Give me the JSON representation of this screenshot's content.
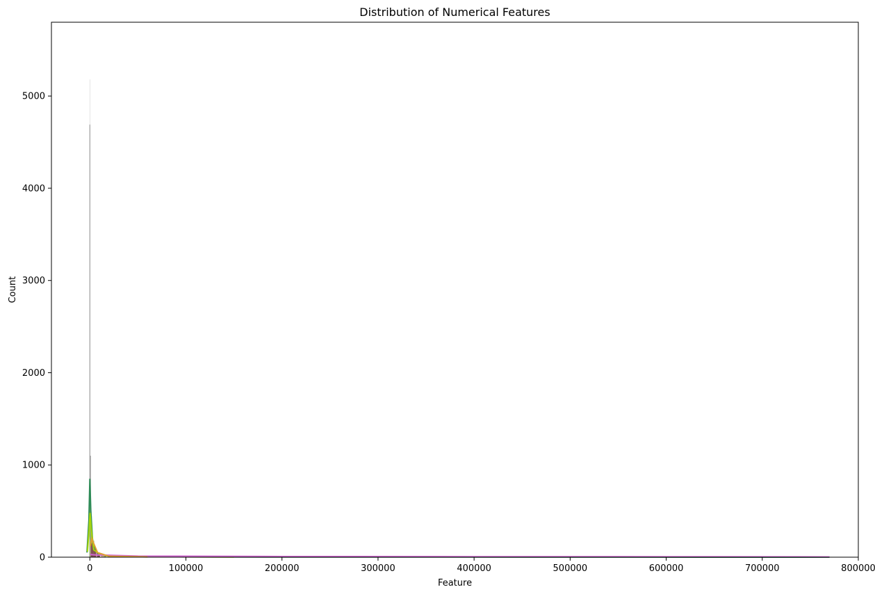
{
  "chart_data": {
    "type": "histogram",
    "title": "Distribution of Numerical Features",
    "xlabel": "Feature",
    "ylabel": "Count",
    "xlim": [
      -40000,
      800000
    ],
    "ylim": [
      0,
      5800
    ],
    "x_ticks": [
      0,
      100000,
      200000,
      300000,
      400000,
      500000,
      600000,
      700000,
      800000
    ],
    "x_tick_labels": [
      "0",
      "100000",
      "200000",
      "300000",
      "400000",
      "500000",
      "600000",
      "700000",
      "800000"
    ],
    "y_ticks": [
      0,
      1000,
      2000,
      3000,
      4000,
      5000
    ],
    "y_tick_labels": [
      "0",
      "1000",
      "2000",
      "3000",
      "4000",
      "5000"
    ],
    "grid": false,
    "legend": "none",
    "series": [
      {
        "color": "#6b6b6b",
        "bars": [
          [
            0,
            4690
          ],
          [
            600,
            1100
          ],
          [
            1200,
            500
          ],
          [
            2000,
            200
          ],
          [
            4000,
            80
          ],
          [
            8000,
            30
          ],
          [
            15000,
            10
          ]
        ]
      },
      {
        "color": "#c8c8c8",
        "bars": [
          [
            0,
            5180
          ]
        ]
      },
      {
        "color": "#8fbc5a",
        "bars": [
          [
            0,
            800
          ],
          [
            1000,
            450
          ],
          [
            2500,
            180
          ],
          [
            5000,
            60
          ]
        ]
      },
      {
        "color": "#d98cb3",
        "bars": [
          [
            1000,
            180
          ],
          [
            3000,
            120
          ],
          [
            6000,
            60
          ],
          [
            12000,
            25
          ],
          [
            30000,
            10
          ],
          [
            100000,
            5
          ]
        ]
      },
      {
        "color": "#6e3b3b",
        "bars": [
          [
            1500,
            150
          ],
          [
            4000,
            90
          ],
          [
            8000,
            40
          ],
          [
            16000,
            15
          ]
        ]
      }
    ],
    "kde_lines": [
      {
        "color": "#2e8b57",
        "points": [
          [
            -3000,
            50
          ],
          [
            -1000,
            400
          ],
          [
            0,
            850
          ],
          [
            1000,
            500
          ],
          [
            3000,
            150
          ],
          [
            8000,
            40
          ],
          [
            20000,
            10
          ],
          [
            60000,
            4
          ],
          [
            200000,
            2
          ],
          [
            770000,
            0
          ]
        ]
      },
      {
        "color": "#a6d608",
        "points": [
          [
            -2500,
            60
          ],
          [
            -800,
            300
          ],
          [
            200,
            480
          ],
          [
            1500,
            300
          ],
          [
            4000,
            80
          ],
          [
            12000,
            20
          ],
          [
            40000,
            5
          ],
          [
            150000,
            2
          ]
        ]
      },
      {
        "color": "#cc66cc",
        "points": [
          [
            0,
            30
          ],
          [
            5000,
            25
          ],
          [
            50000,
            12
          ],
          [
            200000,
            8
          ],
          [
            400000,
            6
          ],
          [
            600000,
            5
          ],
          [
            770000,
            3
          ]
        ]
      },
      {
        "color": "#e0a030",
        "points": [
          [
            500,
            120
          ],
          [
            2000,
            200
          ],
          [
            4000,
            150
          ],
          [
            8000,
            50
          ],
          [
            20000,
            10
          ],
          [
            60000,
            3
          ]
        ]
      }
    ]
  }
}
